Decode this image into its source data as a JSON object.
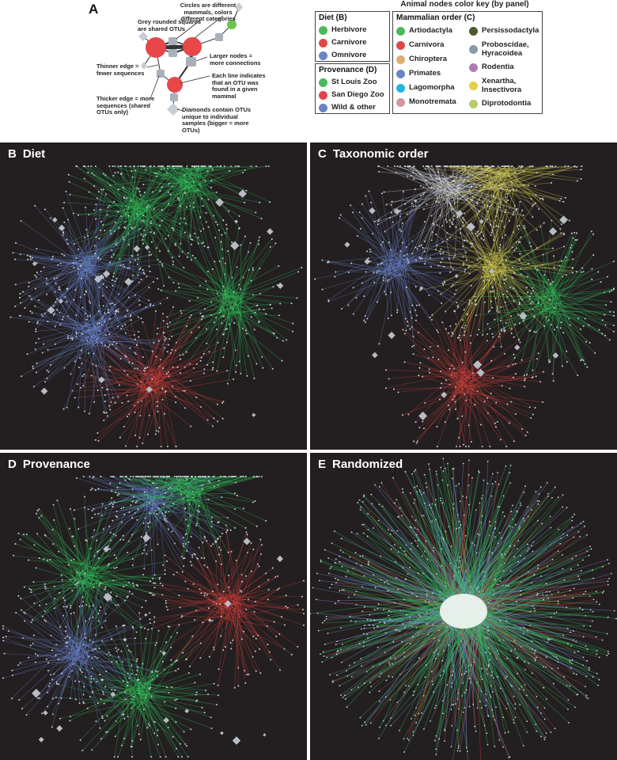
{
  "panel_a": {
    "letter": "A",
    "annotations": [
      "Circles are different mammals, colors different categories",
      "Grey rounded squares are shared OTUs",
      "Larger nodes = more connections",
      "Thinner edge = fewer sequences",
      "Each line indicates that an OTU was found in a given mammal",
      "Thicker edge = more sequences (shared OTUs only)",
      "Diamonds contain OTUs unique to individual samples (bigger = more OTUs)"
    ]
  },
  "legend": {
    "title": "Animal nodes color key (by panel)",
    "diet": {
      "title": "Diet (B)",
      "items": [
        {
          "label": "Herbivore",
          "color": "#4cb85a"
        },
        {
          "label": "Carnivore",
          "color": "#e04848"
        },
        {
          "label": "Omnivore",
          "color": "#6a84c4"
        }
      ]
    },
    "provenance": {
      "title": "Provenance (D)",
      "items": [
        {
          "label": "St Louis Zoo",
          "color": "#4cb85a"
        },
        {
          "label": "San Diego Zoo",
          "color": "#e04848"
        },
        {
          "label": "Wild & other",
          "color": "#6a84c4"
        }
      ]
    },
    "order": {
      "title": "Mammalian order (C)",
      "col1": [
        {
          "label": "Artiodactyla",
          "color": "#4cb85a"
        },
        {
          "label": "Carnivora",
          "color": "#e04848"
        },
        {
          "label": "Chiroptera",
          "color": "#d9b070"
        },
        {
          "label": "Primates",
          "color": "#6a84c4"
        },
        {
          "label": "Lagomorpha",
          "color": "#22b4e0"
        },
        {
          "label": "Monotremata",
          "color": "#d09a9a"
        }
      ],
      "col2": [
        {
          "label": "Persissodactyla",
          "color": "#4a5a2c"
        },
        {
          "label": "Proboscidae, Hyracoidea",
          "color": "#8a9aa6"
        },
        {
          "label": "Rodentia",
          "color": "#b27ab4"
        },
        {
          "label": "Xenartha, Insectivora",
          "color": "#e0d04a"
        },
        {
          "label": "Diprotodontia",
          "color": "#b4cc6a"
        }
      ]
    }
  },
  "panels": [
    {
      "letter": "B",
      "title": "Diet",
      "scheme": "diet"
    },
    {
      "letter": "C",
      "title": "Taxonomic order",
      "scheme": "order"
    },
    {
      "letter": "D",
      "title": "Provenance",
      "scheme": "provenance"
    },
    {
      "letter": "E",
      "title": "Randomized",
      "scheme": "random"
    }
  ]
}
